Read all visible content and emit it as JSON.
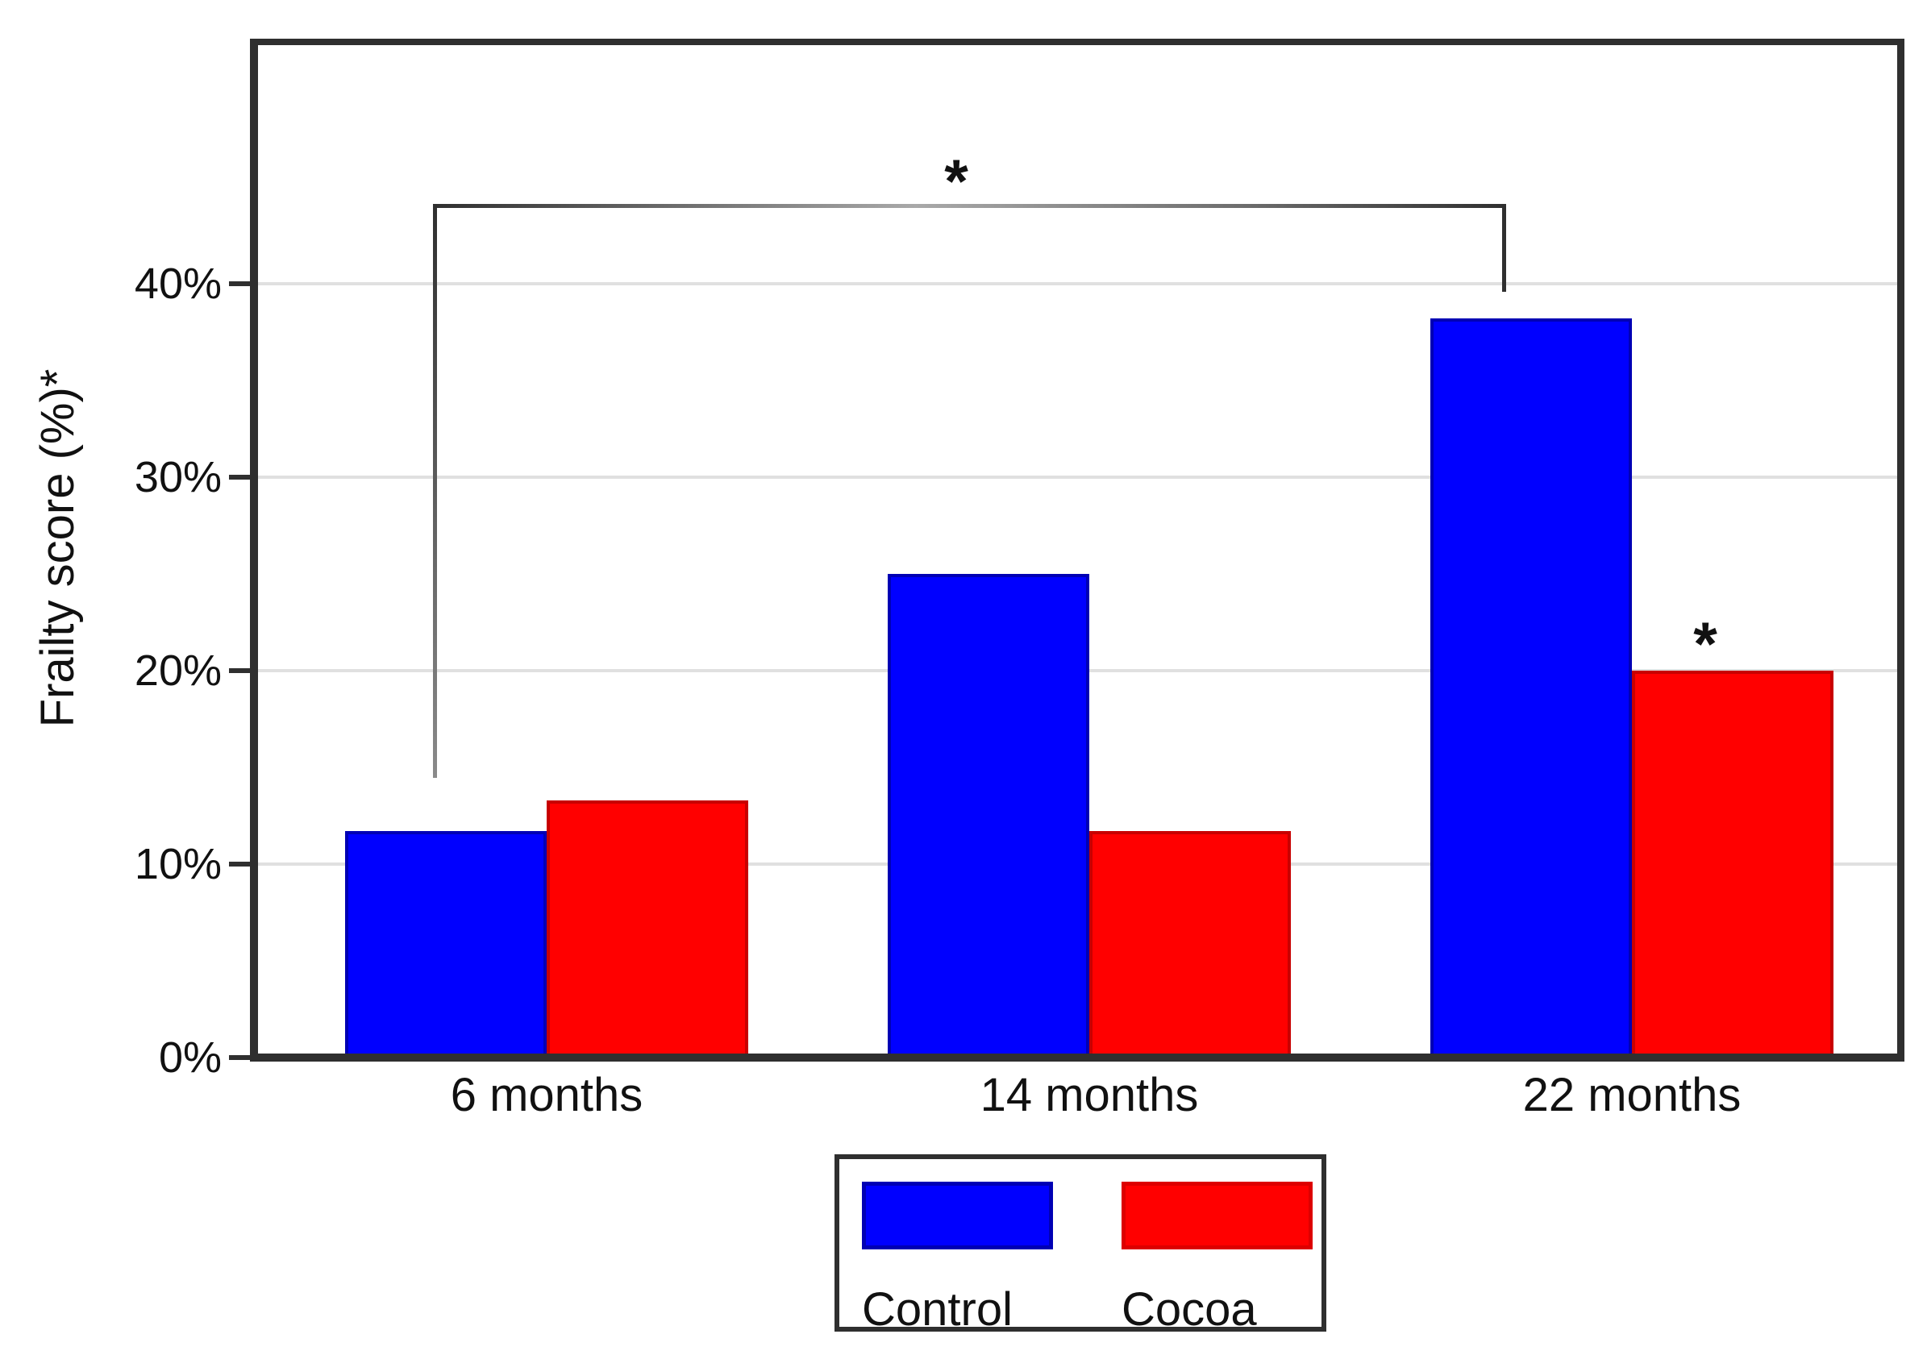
{
  "figure": {
    "background": "#ffffff"
  },
  "chart_data": {
    "type": "bar",
    "title": "",
    "xlabel": "",
    "ylabel": "Frailty score (%)*",
    "categories": [
      "6 months",
      "14 months",
      "22 months"
    ],
    "series": [
      {
        "name": "Control",
        "color": "#0000ff",
        "border_color": "#0000b4",
        "values": [
          11.7,
          25.0,
          38.2
        ]
      },
      {
        "name": "Cocoa",
        "color": "#ff0000",
        "border_color": "#c80000",
        "values": [
          13.3,
          11.7,
          20.0
        ]
      }
    ],
    "y_ticks": [
      "0%",
      "10%",
      "20%",
      "30%",
      "40%"
    ],
    "y_tick_values": [
      0,
      10,
      20,
      30,
      40
    ],
    "ylim": [
      0,
      52
    ],
    "grid": true,
    "gridline_color": "#e0e0e0",
    "frame_color": "#2f2f2f",
    "legend_position": "bottom-center",
    "annotations": [
      {
        "type": "significance-bracket",
        "label": "*",
        "from_category": "6 months",
        "from_series": "Control",
        "to_category": "22 months",
        "to_series": "Control"
      },
      {
        "type": "asterisk",
        "label": "*",
        "category": "22 months",
        "series": "Cocoa"
      }
    ]
  },
  "legend": {
    "items": [
      {
        "label": "Control",
        "color": "#0000ff"
      },
      {
        "label": "Cocoa",
        "color": "#ff0000"
      }
    ]
  }
}
